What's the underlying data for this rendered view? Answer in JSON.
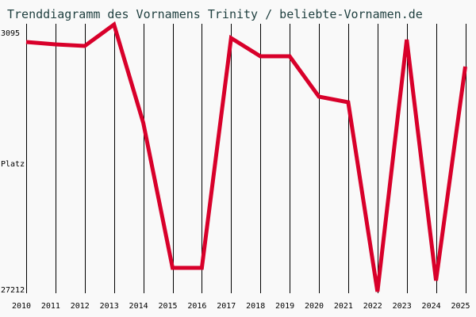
{
  "chart_data": {
    "type": "line",
    "title": "Trenddiagramm des Vornamens Trinity / beliebte-Vornamen.de",
    "xlabel": "",
    "ylabel": "Platz",
    "y_inverted": true,
    "ylim": [
      3095,
      27212
    ],
    "y_ticks": [
      "3095",
      "27212"
    ],
    "categories": [
      "2010",
      "2011",
      "2012",
      "2013",
      "2014",
      "2015",
      "2016",
      "2017",
      "2018",
      "2019",
      "2020",
      "2021",
      "2022",
      "2023",
      "2024",
      "2025"
    ],
    "series": [
      {
        "name": "Trinity",
        "color": "#d8002a",
        "values": [
          3842,
          4066,
          4215,
          2199,
          11458,
          25122,
          25122,
          3468,
          5185,
          5185,
          8994,
          9517,
          27361,
          3617,
          26316,
          6156
        ]
      }
    ],
    "grid": {
      "vertical": true,
      "horizontal": false
    }
  },
  "labels": {
    "title": "Trenddiagramm des Vornamens Trinity / beliebte-Vornamen.de",
    "y_top": "3095",
    "y_mid": "Platz",
    "y_bottom": "27212"
  }
}
